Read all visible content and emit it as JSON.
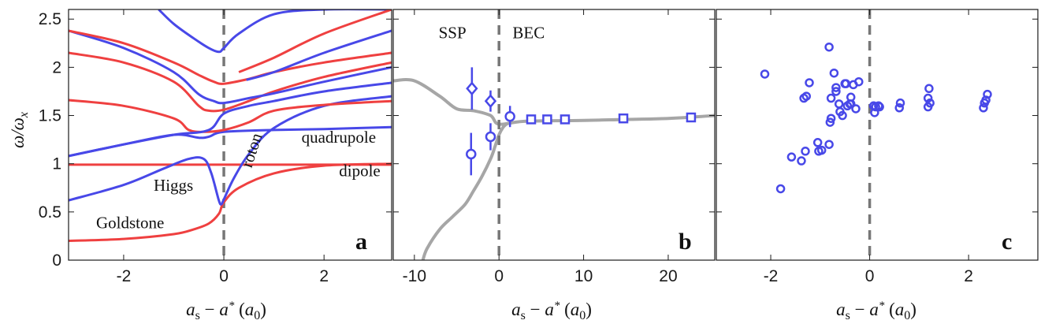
{
  "chart_data": [
    {
      "type": "line",
      "panel_letter": "a",
      "xlabel": "a_s − a* (a_0)",
      "ylabel": "ω/ω_x",
      "xlim": [
        -3.1,
        3.35
      ],
      "ylim": [
        0,
        2.6
      ],
      "xticks": [
        -2,
        0,
        2
      ],
      "yticks": [
        0,
        0.5,
        1,
        1.5,
        2,
        2.5
      ],
      "ytick_labels": [
        "0",
        "0.5",
        "1",
        "1.5",
        "2",
        "2.5"
      ],
      "vline_x": 0,
      "colors": {
        "red": "#ef4040",
        "blue": "#4848e8",
        "vline": "#777777"
      },
      "annotations": [
        {
          "text": "quadrupole",
          "x": 1.55,
          "y": 1.22
        },
        {
          "text": "dipole",
          "x": 2.3,
          "y": 0.87
        },
        {
          "text": "Higgs",
          "x": -1.4,
          "y": 0.72
        },
        {
          "text": "Goldstone",
          "x": -2.55,
          "y": 0.33
        },
        {
          "text": "roton",
          "x": 0.55,
          "y": 0.95,
          "rotate": -72
        }
      ],
      "series": [
        {
          "color": "red",
          "x": [
            -3.1,
            -2,
            -1,
            -0.6,
            -0.3,
            -0.1,
            0,
            0.3,
            1,
            2,
            3.35
          ],
          "y": [
            0.2,
            0.22,
            0.27,
            0.32,
            0.38,
            0.48,
            0.6,
            0.75,
            0.9,
            0.98,
            1.0
          ]
        },
        {
          "color": "red",
          "x": [
            -3.1,
            3.35
          ],
          "y": [
            0.99,
            0.99
          ]
        },
        {
          "color": "blue",
          "x": [
            -3.1,
            -2,
            -1.2,
            -0.7,
            -0.4,
            -0.25,
            -0.1,
            -0.05,
            0,
            0.2,
            0.5,
            1,
            2,
            3.35
          ],
          "y": [
            0.62,
            0.78,
            0.95,
            1.05,
            1.05,
            0.9,
            0.62,
            0.58,
            0.63,
            0.85,
            1.1,
            1.37,
            1.6,
            1.7
          ]
        },
        {
          "color": "blue",
          "x": [
            -3.1,
            -2,
            -1,
            -0.5,
            -0.3,
            0,
            1,
            2,
            3.35
          ],
          "y": [
            1.08,
            1.2,
            1.3,
            1.27,
            1.28,
            1.33,
            1.35,
            1.36,
            1.38
          ]
        },
        {
          "color": "red",
          "x": [
            -3.1,
            -2,
            -1,
            -0.7,
            -0.4,
            0,
            0.5,
            1,
            2,
            3.35
          ],
          "y": [
            1.66,
            1.6,
            1.47,
            1.35,
            1.33,
            1.35,
            1.43,
            1.55,
            1.61,
            1.65
          ]
        },
        {
          "color": "blue",
          "x": [
            -3.1,
            -2,
            -1,
            -0.3,
            0,
            0.5,
            1,
            2,
            3.35
          ],
          "y": [
            1.08,
            1.2,
            1.3,
            1.35,
            1.52,
            1.6,
            1.65,
            1.75,
            1.84
          ]
        },
        {
          "color": "red",
          "x": [
            -3.1,
            -2,
            -1,
            -0.5,
            -0.3,
            0,
            0.5,
            1,
            2,
            3.35
          ],
          "y": [
            2.15,
            2.05,
            1.85,
            1.6,
            1.55,
            1.56,
            1.65,
            1.75,
            1.9,
            2.05
          ]
        },
        {
          "color": "blue",
          "x": [
            -3.1,
            -2,
            -1,
            -0.5,
            -0.2,
            0,
            0.5,
            1,
            2,
            3.35
          ],
          "y": [
            2.38,
            2.2,
            1.95,
            1.72,
            1.65,
            1.63,
            1.68,
            1.73,
            1.85,
            2.0
          ]
        },
        {
          "color": "red",
          "x": [
            -3.1,
            -2,
            -1,
            -0.5,
            -0.2,
            0,
            0.5,
            1,
            2,
            3.35
          ],
          "y": [
            2.38,
            2.25,
            2.05,
            1.92,
            1.85,
            1.83,
            1.88,
            1.95,
            2.05,
            2.15
          ]
        },
        {
          "color": "blue",
          "x": [
            -1.3,
            -1,
            -0.6,
            -0.3,
            -0.1,
            0,
            0.3,
            1,
            2,
            3.35
          ],
          "y": [
            2.6,
            2.45,
            2.3,
            2.2,
            2.16,
            2.2,
            2.35,
            2.55,
            2.6,
            2.6
          ]
        },
        {
          "color": "blue",
          "x": [
            0.45,
            1,
            2,
            3.35
          ],
          "y": [
            1.87,
            1.95,
            2.15,
            2.38
          ]
        },
        {
          "color": "red",
          "x": [
            0.3,
            1,
            2,
            3.35
          ],
          "y": [
            1.95,
            2.1,
            2.35,
            2.6
          ]
        }
      ]
    },
    {
      "type": "scatter",
      "panel_letter": "b",
      "xlabel": "a_s − a* (a_0)",
      "xlim": [
        -12.5,
        25.5
      ],
      "ylim": [
        0,
        2.6
      ],
      "xticks": [
        -10,
        0,
        10,
        20
      ],
      "vline_x": 0,
      "region_labels": [
        {
          "text": "SSP",
          "x": -5.5,
          "y": 2.3
        },
        {
          "text": "BEC",
          "x": 3.5,
          "y": 2.3
        }
      ],
      "gray_curve_upper": {
        "x": [
          -12.5,
          -10,
          -7,
          -5,
          -3,
          -1,
          0,
          3,
          10,
          20,
          25.5
        ],
        "y": [
          1.86,
          1.86,
          1.7,
          1.57,
          1.55,
          1.5,
          1.41,
          1.44,
          1.45,
          1.47,
          1.5
        ]
      },
      "gray_curve_lower": {
        "x": [
          -9,
          -8.5,
          -7,
          -5.5,
          -4,
          -3,
          -2,
          -1,
          -0.5,
          0,
          0.5,
          1
        ],
        "y": [
          0,
          0.12,
          0.32,
          0.45,
          0.58,
          0.72,
          0.87,
          1.05,
          1.17,
          1.3,
          1.38,
          1.42
        ]
      },
      "points": [
        {
          "marker": "diamond",
          "x": -3.2,
          "y": 1.78,
          "yerr": 0.22
        },
        {
          "marker": "diamond",
          "x": -1.0,
          "y": 1.65,
          "yerr": 0.11
        },
        {
          "marker": "circle",
          "x": -3.3,
          "y": 1.1,
          "yerr": 0.22
        },
        {
          "marker": "circle",
          "x": -1.0,
          "y": 1.28,
          "yerr": 0.14
        },
        {
          "marker": "circle",
          "x": 1.3,
          "y": 1.49,
          "yerr": 0.11
        },
        {
          "marker": "square",
          "x": 3.8,
          "y": 1.46,
          "yerr": 0
        },
        {
          "marker": "square",
          "x": 5.7,
          "y": 1.46,
          "yerr": 0
        },
        {
          "marker": "square",
          "x": 7.8,
          "y": 1.46,
          "yerr": 0
        },
        {
          "marker": "square",
          "x": 14.7,
          "y": 1.47,
          "yerr": 0
        },
        {
          "marker": "square",
          "x": 22.7,
          "y": 1.48,
          "yerr": 0
        }
      ]
    },
    {
      "type": "scatter",
      "panel_letter": "c",
      "xlabel": "a_s − a* (a_0)",
      "xlim": [
        -3.1,
        3.4
      ],
      "ylim": [
        0,
        2.6
      ],
      "xticks": [
        -2,
        0,
        2
      ],
      "vline_x": 0,
      "x": [
        -2.12,
        -1.8,
        -1.58,
        -1.38,
        -1.3,
        -1.33,
        -1.28,
        -1.22,
        -1.05,
        -1.03,
        -0.97,
        -0.82,
        -0.82,
        -0.78,
        -0.8,
        -0.78,
        -0.72,
        -0.68,
        -0.68,
        -0.62,
        -0.6,
        -0.55,
        -0.5,
        -0.48,
        -0.45,
        -0.4,
        -0.38,
        -0.38,
        -0.33,
        -0.28,
        -0.22,
        0.08,
        0.1,
        0.12,
        0.18,
        0.2,
        0.6,
        0.62,
        1.18,
        1.18,
        1.2,
        1.22,
        2.3,
        2.32,
        2.35,
        2.38
      ],
      "y": [
        1.93,
        0.74,
        1.07,
        1.03,
        1.13,
        1.68,
        1.7,
        1.84,
        1.22,
        1.13,
        1.14,
        2.21,
        1.2,
        1.47,
        1.43,
        1.68,
        1.94,
        1.79,
        1.75,
        1.62,
        1.54,
        1.5,
        1.83,
        1.83,
        1.6,
        1.62,
        1.62,
        1.69,
        1.82,
        1.57,
        1.85,
        1.6,
        1.53,
        1.59,
        1.6,
        1.59,
        1.58,
        1.63,
        1.59,
        1.68,
        1.78,
        1.63,
        1.58,
        1.63,
        1.66,
        1.72
      ]
    }
  ]
}
